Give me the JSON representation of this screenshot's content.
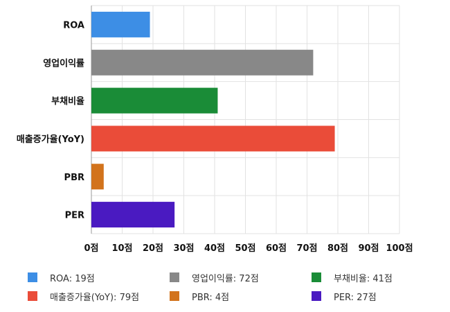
{
  "chart_data": {
    "type": "bar",
    "orientation": "horizontal",
    "categories": [
      "ROA",
      "영업이익률",
      "부채비율",
      "매출증가율(YoY)",
      "PBR",
      "PER"
    ],
    "values": [
      19,
      72,
      41,
      79,
      4,
      27
    ],
    "colors": [
      "#3d8ee5",
      "#888888",
      "#1a8c37",
      "#ea4c39",
      "#d2731c",
      "#4a1ac1"
    ],
    "x_ticks": [
      "0점",
      "10점",
      "20점",
      "30점",
      "40점",
      "50점",
      "60점",
      "70점",
      "80점",
      "90점",
      "100점"
    ],
    "xlim": [
      0,
      100
    ],
    "grid": true,
    "legend_position": "bottom",
    "legend": [
      {
        "label": "ROA: 19점",
        "color": "#3d8ee5"
      },
      {
        "label": "영업이익률: 72점",
        "color": "#888888"
      },
      {
        "label": "부채비율: 41점",
        "color": "#1a8c37"
      },
      {
        "label": "매출증가율(YoY): 79점",
        "color": "#ea4c39"
      },
      {
        "label": "PBR: 4점",
        "color": "#d2731c"
      },
      {
        "label": "PER: 27점",
        "color": "#4a1ac1"
      }
    ]
  }
}
